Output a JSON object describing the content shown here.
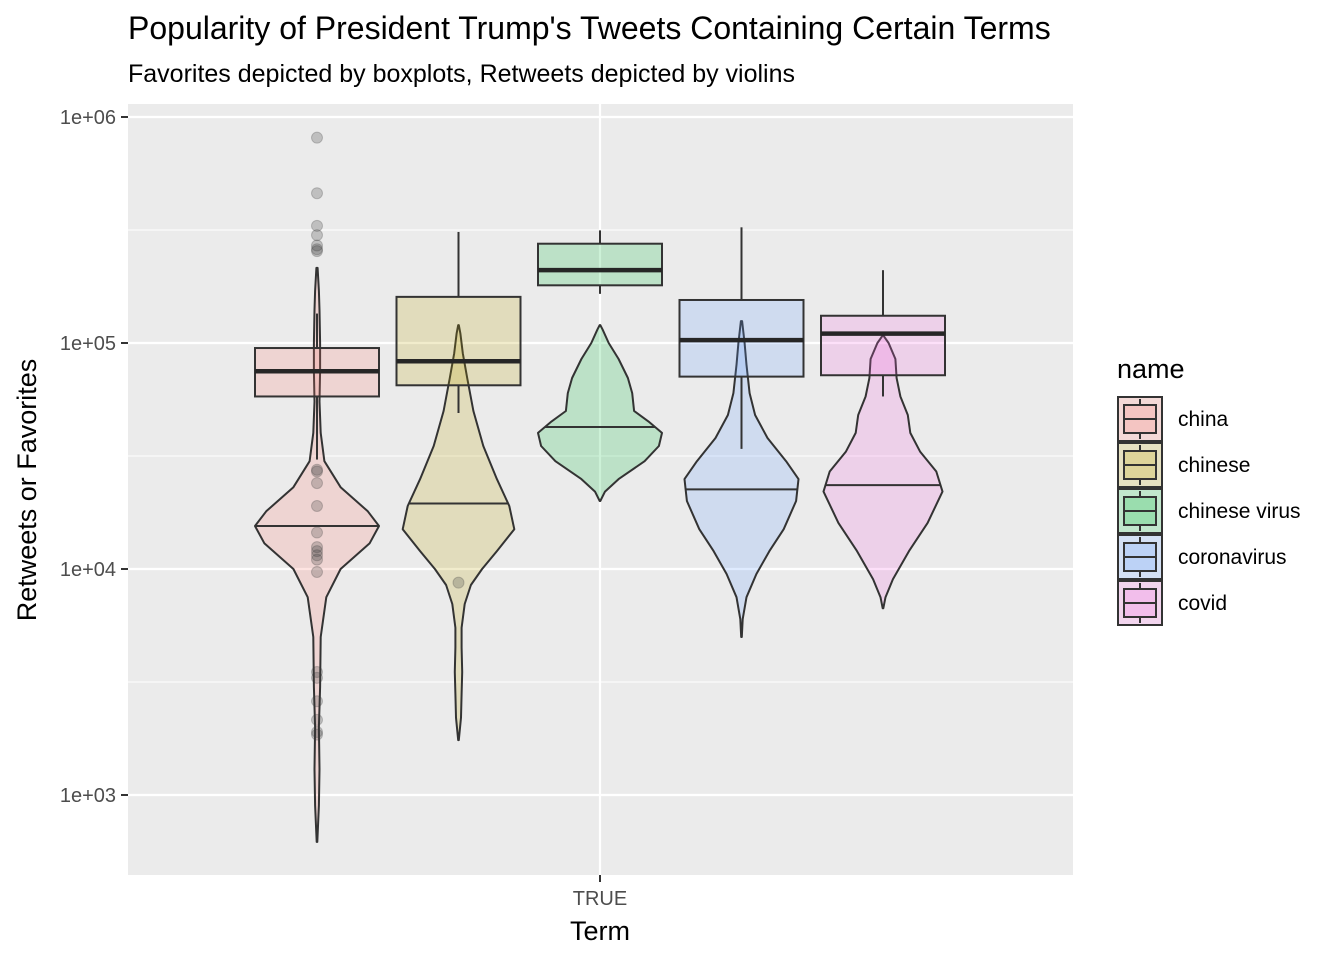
{
  "chart_data": {
    "type": "boxplot",
    "title": "Popularity of President Trump's Tweets Containing Certain Terms",
    "subtitle": "Favorites depicted by boxplots, Retweets depicted by violins",
    "xlabel": "Term",
    "ylabel": "Retweets or Favorites",
    "x_tick_labels": [
      "TRUE"
    ],
    "y_scale": "log10",
    "y_ticks": [
      {
        "value": 1000,
        "label": "1e+03"
      },
      {
        "value": 10000,
        "label": "1e+04"
      },
      {
        "value": 100000,
        "label": "1e+05"
      },
      {
        "value": 1000000,
        "label": "1e+06"
      }
    ],
    "ylim": [
      450,
      1150000
    ],
    "grid": true,
    "legend": {
      "title": "name",
      "placement": "right"
    },
    "series": [
      {
        "name": "china",
        "color": "#F8766D",
        "box": {
          "whisker_low": 30500,
          "q1": 58000,
          "median": 75000,
          "q3": 95000,
          "whisker_high": 135000
        },
        "outliers": [
          810000,
          460000,
          330000,
          300000,
          270000,
          260000,
          255000,
          27500,
          27000,
          24000,
          19000,
          14500,
          12500,
          12000,
          11500,
          11000,
          9700,
          3500,
          3300,
          2600,
          2150,
          1900,
          1850
        ],
        "violin": {
          "median": 15500,
          "profile": [
            [
              620,
              0.005
            ],
            [
              900,
              0.03
            ],
            [
              1300,
              0.04
            ],
            [
              2000,
              0.03
            ],
            [
              3000,
              0.05
            ],
            [
              5000,
              0.06
            ],
            [
              7500,
              0.15
            ],
            [
              10000,
              0.38
            ],
            [
              13000,
              0.85
            ],
            [
              15500,
              1.0
            ],
            [
              18000,
              0.82
            ],
            [
              23000,
              0.38
            ],
            [
              30000,
              0.12
            ],
            [
              40000,
              0.06
            ],
            [
              55000,
              0.04
            ],
            [
              75000,
              0.05
            ],
            [
              100000,
              0.05
            ],
            [
              140000,
              0.04
            ],
            [
              170000,
              0.03
            ],
            [
              215000,
              0.01
            ]
          ]
        }
      },
      {
        "name": "chinese",
        "color": "#B79F00",
        "box": {
          "whisker_low": 49000,
          "q1": 65000,
          "median": 83000,
          "q3": 160000,
          "whisker_high": 310000
        },
        "outliers": [
          8700
        ],
        "violin": {
          "median": 19500,
          "profile": [
            [
              1750,
              0.005
            ],
            [
              2200,
              0.04
            ],
            [
              2800,
              0.05
            ],
            [
              3500,
              0.06
            ],
            [
              4500,
              0.05
            ],
            [
              5500,
              0.05
            ],
            [
              7000,
              0.1
            ],
            [
              8500,
              0.2
            ],
            [
              10000,
              0.38
            ],
            [
              12000,
              0.62
            ],
            [
              15000,
              0.9
            ],
            [
              19000,
              0.82
            ],
            [
              25000,
              0.62
            ],
            [
              35000,
              0.4
            ],
            [
              50000,
              0.24
            ],
            [
              70000,
              0.14
            ],
            [
              90000,
              0.07
            ],
            [
              110000,
              0.03
            ],
            [
              120000,
              0.005
            ]
          ]
        }
      },
      {
        "name": "chinese virus",
        "color": "#00BA38",
        "box": {
          "whisker_low": 165000,
          "q1": 180000,
          "median": 210000,
          "q3": 275000,
          "whisker_high": 315000
        },
        "outliers": [],
        "violin": {
          "median": 42500,
          "profile": [
            [
              20000,
              0.005
            ],
            [
              22000,
              0.08
            ],
            [
              25000,
              0.3
            ],
            [
              30000,
              0.72
            ],
            [
              35000,
              0.95
            ],
            [
              40000,
              1.0
            ],
            [
              45000,
              0.78
            ],
            [
              50000,
              0.55
            ],
            [
              60000,
              0.52
            ],
            [
              70000,
              0.45
            ],
            [
              85000,
              0.3
            ],
            [
              100000,
              0.14
            ],
            [
              115000,
              0.04
            ],
            [
              120000,
              0.005
            ]
          ]
        }
      },
      {
        "name": "coronavirus",
        "color": "#619CFF",
        "box": {
          "whisker_low": 34000,
          "q1": 71000,
          "median": 103000,
          "q3": 155000,
          "whisker_high": 325000
        },
        "outliers": [],
        "violin": {
          "median": 22500,
          "profile": [
            [
              5000,
              0.005
            ],
            [
              6000,
              0.02
            ],
            [
              7500,
              0.08
            ],
            [
              9500,
              0.24
            ],
            [
              12000,
              0.45
            ],
            [
              15000,
              0.68
            ],
            [
              20000,
              0.88
            ],
            [
              25000,
              0.92
            ],
            [
              30000,
              0.72
            ],
            [
              38000,
              0.42
            ],
            [
              48000,
              0.22
            ],
            [
              60000,
              0.13
            ],
            [
              80000,
              0.08
            ],
            [
              100000,
              0.05
            ],
            [
              125000,
              0.01
            ]
          ]
        }
      },
      {
        "name": "covid",
        "color": "#F564E3",
        "box": {
          "whisker_low": 58000,
          "q1": 72000,
          "median": 110000,
          "q3": 132000,
          "whisker_high": 210000
        },
        "outliers": [],
        "violin": {
          "median": 23500,
          "profile": [
            [
              6700,
              0.005
            ],
            [
              7500,
              0.04
            ],
            [
              9000,
              0.16
            ],
            [
              12000,
              0.42
            ],
            [
              16000,
              0.72
            ],
            [
              22000,
              0.96
            ],
            [
              27000,
              0.86
            ],
            [
              33000,
              0.6
            ],
            [
              40000,
              0.44
            ],
            [
              48000,
              0.4
            ],
            [
              58000,
              0.28
            ],
            [
              70000,
              0.22
            ],
            [
              85000,
              0.2
            ],
            [
              100000,
              0.09
            ],
            [
              108000,
              0.005
            ]
          ]
        }
      }
    ]
  }
}
